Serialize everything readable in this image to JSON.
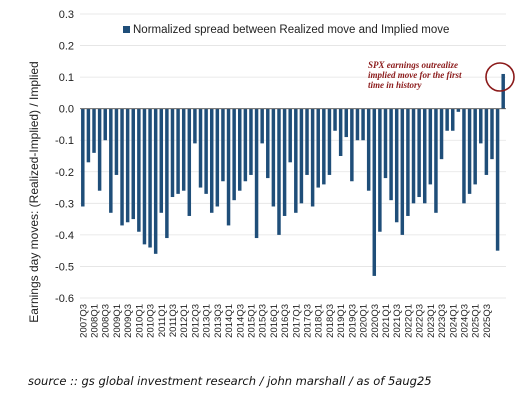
{
  "chart_data": {
    "type": "bar",
    "ylabel": "Earnings day moves: (Realized-Implied) / Implied",
    "ylim": [
      -0.6,
      0.3
    ],
    "yticks": [
      "0.3",
      "0.2",
      "0.1",
      "0.0",
      "-0.1",
      "-0.2",
      "-0.3",
      "-0.4",
      "-0.5",
      "-0.6"
    ],
    "legend": "Normalized spread between Realized move and Implied move",
    "annotation": [
      "SPX earnings outrealize",
      "implied move for the first",
      "time in history"
    ],
    "bar_color": "#1f4e79",
    "highlight_color": "#8b1a1a",
    "tick_labels": [
      "2007Q3",
      "2008Q1",
      "2008Q3",
      "2009Q1",
      "2009Q3",
      "2010Q1",
      "2010Q3",
      "2011Q1",
      "2011Q3",
      "2012Q1",
      "2012Q3",
      "2013Q1",
      "2013Q3",
      "2014Q1",
      "2014Q3",
      "2015Q1",
      "2015Q3",
      "2016Q1",
      "2016Q3",
      "2017Q1",
      "2017Q3",
      "2018Q1",
      "2018Q3",
      "2019Q1",
      "2019Q3",
      "2020Q1",
      "2020Q3",
      "2021Q1",
      "2021Q3",
      "2022Q1",
      "2022Q3",
      "2023Q1",
      "2023Q3",
      "2024Q1",
      "2024Q3",
      "2025Q1",
      "2025Q3"
    ],
    "values": [
      -0.31,
      -0.17,
      -0.14,
      -0.26,
      -0.1,
      -0.33,
      -0.21,
      -0.37,
      -0.36,
      -0.35,
      -0.39,
      -0.43,
      -0.44,
      -0.46,
      -0.33,
      -0.41,
      -0.28,
      -0.27,
      -0.26,
      -0.34,
      -0.11,
      -0.25,
      -0.27,
      -0.33,
      -0.31,
      -0.23,
      -0.37,
      -0.29,
      -0.26,
      -0.23,
      -0.21,
      -0.41,
      -0.11,
      -0.22,
      -0.31,
      -0.4,
      -0.34,
      -0.17,
      -0.33,
      -0.3,
      -0.21,
      -0.31,
      -0.25,
      -0.24,
      -0.21,
      -0.07,
      -0.15,
      -0.09,
      -0.23,
      -0.1,
      -0.1,
      -0.26,
      -0.53,
      -0.39,
      -0.22,
      -0.29,
      -0.36,
      -0.4,
      -0.34,
      -0.3,
      -0.28,
      -0.3,
      -0.24,
      -0.33,
      -0.16,
      -0.07,
      -0.07,
      -0.01,
      -0.3,
      -0.27,
      -0.24,
      -0.11,
      -0.21,
      -0.16,
      -0.45,
      0.11
    ]
  },
  "source": "source :: gs global investment research / john marshall / as of 5aug25"
}
